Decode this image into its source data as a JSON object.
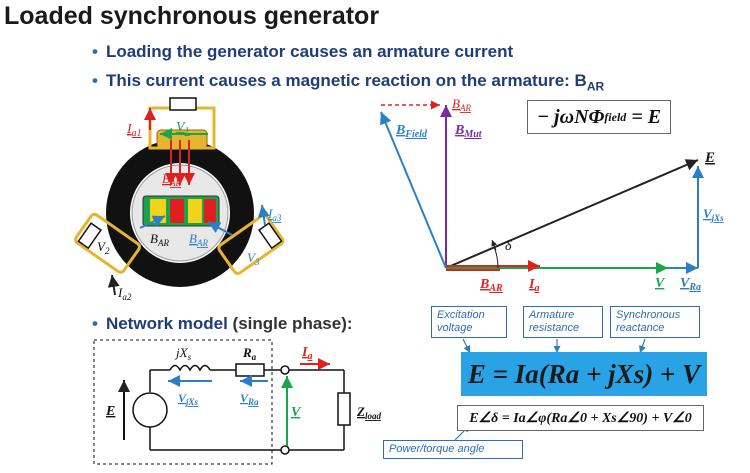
{
  "title": "Loaded synchronous generator",
  "bullets": [
    "Loading the generator causes an armature current",
    "This current causes a magnetic reaction on the armature: B",
    "Network model"
  ],
  "bullet2_sub": "AR",
  "bullet3_extra": "(single phase):",
  "generator": {
    "Ia1": "I",
    "Ia1_sub": "a1",
    "V1": "V",
    "V1_sub": "1",
    "BAR": "B",
    "BAR_sub": "AR",
    "BAR2": "B",
    "BAR2_sub": "AR",
    "BAR3": "B",
    "BAR3_sub": "AR",
    "Ia3": "I",
    "Ia3_sub": "a3",
    "V2": "V",
    "V2_sub": "2",
    "V3": "V",
    "V3_sub": "3",
    "Ia2": "I",
    "Ia2_sub": "a2"
  },
  "phasor": {
    "BAR_top": "B",
    "BAR_top_sub": "AR",
    "Bfield": "B",
    "Bfield_sub": "Field",
    "Bmut": "B",
    "Bmut_sub": "Mut",
    "E": "E",
    "VjXs": "V",
    "VjXs_sub": "jXs",
    "delta": "δ",
    "BAR_bottom": "B",
    "BAR_bottom_sub": "AR",
    "Ia": "I",
    "Ia_sub": "a",
    "V": "V",
    "VRa": "V",
    "VRa_sub": "Ra"
  },
  "top_equation": "− jωNΦ",
  "top_equation_sub": "field",
  "top_equation_rhs": "= E",
  "labels": {
    "excitation": "Excitation voltage",
    "armature": "Armature resistance",
    "synchronous": "Synchronous reactance",
    "power_angle": "Power/torque angle"
  },
  "equation_main": "E = Ia(Ra + jXs) + V",
  "equation_sub": "E∠δ = Ia∠φ(Ra∠0 + Xs∠90) + V∠0",
  "circuit": {
    "jXs": "jX",
    "jXs_sub": "s",
    "Ra": "R",
    "Ra_sub": "a",
    "Ia": "I",
    "Ia_sub": "a",
    "E": "E",
    "VjXs": "V",
    "VjXs_sub": "jXs",
    "VRa": "V",
    "VRa_sub": "Ra",
    "V": "V",
    "Zload": "Z",
    "Zload_sub": "load"
  },
  "colors": {
    "red": "#e02020",
    "green": "#19a64a",
    "blue": "#2a7fc6",
    "purple": "#7a2aa0",
    "navy": "#1f3d7a"
  }
}
